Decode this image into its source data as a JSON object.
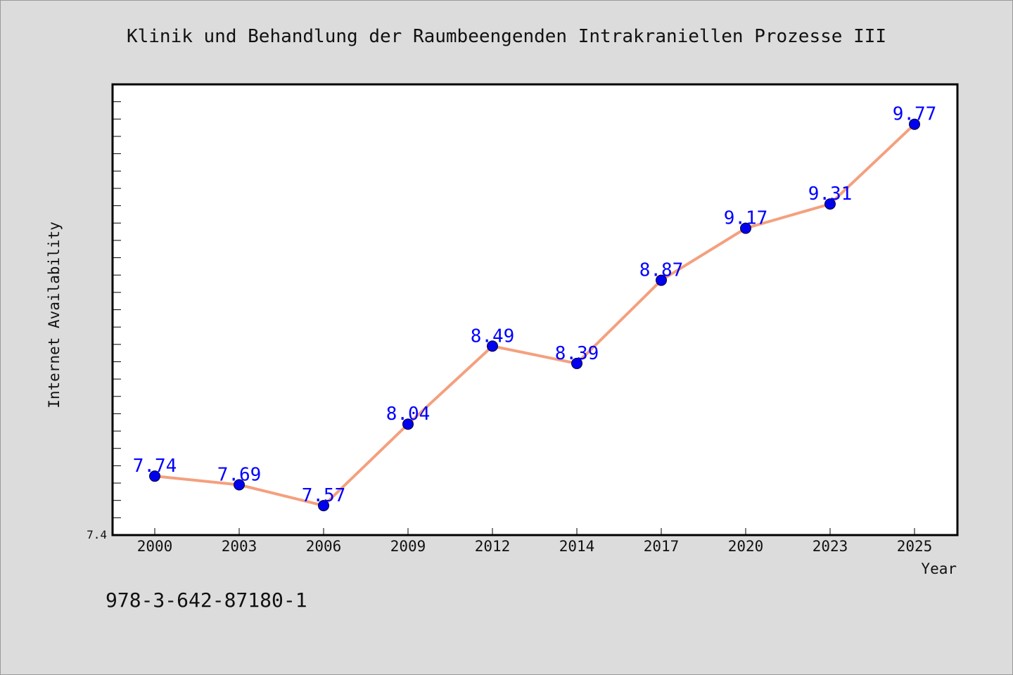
{
  "chart_data": {
    "type": "line",
    "title": "Klinik und Behandlung der Raumbeengenden Intrakraniellen Prozesse III",
    "xlabel": "Year",
    "ylabel": "Internet Availability",
    "categories": [
      "2000",
      "2003",
      "2006",
      "2009",
      "2012",
      "2014",
      "2017",
      "2020",
      "2023",
      "2025"
    ],
    "series": [
      {
        "values": [
          7.74,
          7.69,
          7.57,
          8.04,
          8.49,
          8.39,
          8.87,
          9.17,
          9.31,
          9.77
        ],
        "labels": [
          "7.74",
          "7.69",
          "7.57",
          "8.04",
          "8.49",
          "8.39",
          "8.87",
          "9.17",
          "9.31",
          "9.77"
        ]
      }
    ],
    "ylim": [
      7.4,
      10.0
    ],
    "y_tick_labels": [
      "7.4"
    ],
    "grid": false,
    "line_color": "#f4a07e",
    "marker_color": "#0000ee",
    "label_color": "#0000ff"
  },
  "footer": {
    "isbn": "978-3-642-87180-1"
  }
}
